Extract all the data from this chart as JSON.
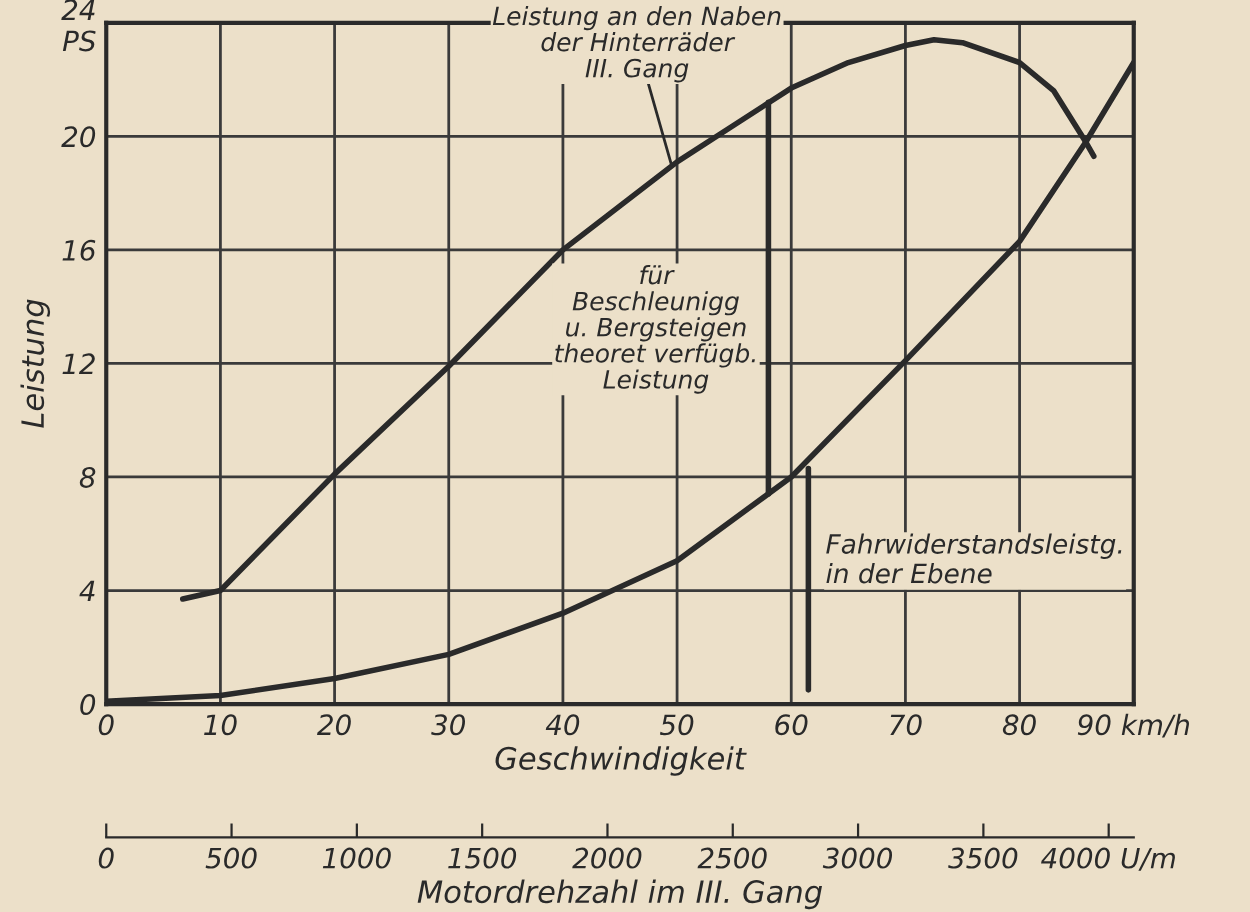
{
  "chart_data": {
    "type": "line",
    "xlabel": "Geschwindigkeit",
    "ylabel": "Leistung",
    "x2label": "Motordrehzahl im III. Gang",
    "series": [
      {
        "color": "#2a2a2a",
        "x": [
          6.7,
          10,
          20,
          30,
          40,
          50,
          55,
          60,
          65,
          70,
          72.5,
          75,
          80,
          83,
          85.8,
          86.5
        ],
        "values": [
          3.7,
          4.0,
          8.1,
          11.9,
          16.0,
          19.1,
          20.4,
          21.7,
          22.6,
          23.2,
          23.4,
          23.3,
          22.6,
          21.6,
          19.8,
          19.3
        ]
      },
      {
        "color": "#2a2a2a",
        "x": [
          0,
          10,
          20,
          30,
          40,
          50,
          60,
          70,
          80,
          85.8,
          90
        ],
        "values": [
          0.1,
          0.3,
          0.9,
          1.75,
          3.2,
          5.05,
          8.0,
          12.1,
          16.3,
          19.8,
          22.6
        ]
      },
      {
        "color": "#2a2a2a",
        "x": [
          58,
          58
        ],
        "values": [
          21.2,
          7.4
        ]
      },
      {
        "color": "#2a2a2a",
        "x": [
          61.5,
          61.5
        ],
        "values": [
          8.3,
          0.5
        ]
      }
    ],
    "xlim": [
      0,
      90
    ],
    "xticks": [
      0,
      10,
      20,
      30,
      40,
      50,
      60,
      70,
      80,
      {
        "value": 90,
        "label": "90 km/h"
      }
    ],
    "ylim": [
      0,
      24
    ],
    "yticks": [
      0,
      4,
      8,
      12,
      16,
      20,
      {
        "value": 24,
        "label": "24\nPS"
      }
    ],
    "x2lim": [
      0,
      4100
    ],
    "x2ticks": [
      0,
      500,
      1000,
      1500,
      2000,
      2500,
      3000,
      3500,
      {
        "value": 4000,
        "label": "4000 U/m"
      }
    ],
    "grid": true,
    "annotations": [
      {
        "text": "Leistung an den Naben\nder Hinterräder\nIII. Gang",
        "x": 49.5,
        "y": 19.0
      },
      "für\nBeschleunigg\nu. Bergsteigen\ntheoret verfügb.\nLeistung",
      "Fahrwiderstandsleistg.\nin der Ebene"
    ]
  }
}
